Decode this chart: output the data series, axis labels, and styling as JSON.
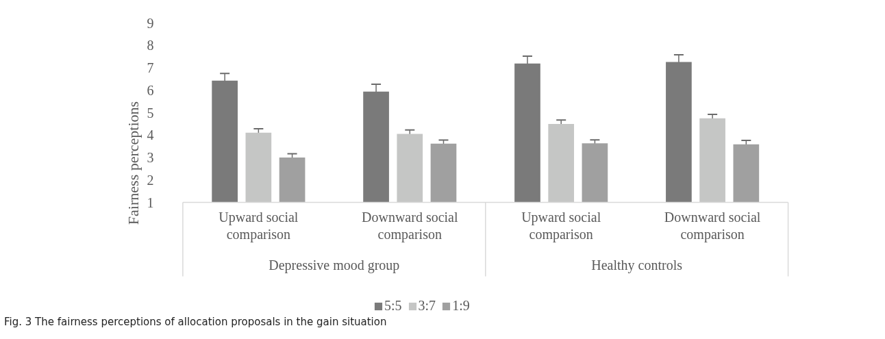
{
  "chart_data": {
    "type": "bar",
    "ylabel": "Fairness perceptions",
    "categories": [
      "Upward social comparison",
      "Downward social comparison",
      "Upward social comparison",
      "Downward social comparison"
    ],
    "series": [
      {
        "name": "5:5",
        "color": "#7a7a7a",
        "values": [
          6.43,
          5.94,
          7.19,
          7.26
        ],
        "errors": [
          0.32,
          0.33,
          0.33,
          0.32
        ]
      },
      {
        "name": "3:7",
        "color": "#c5c6c5",
        "values": [
          4.11,
          4.05,
          4.5,
          4.75
        ],
        "errors": [
          0.17,
          0.18,
          0.17,
          0.17
        ]
      },
      {
        "name": "1:9",
        "color": "#a0a0a0",
        "values": [
          3.0,
          3.62,
          3.63,
          3.59
        ],
        "errors": [
          0.17,
          0.16,
          0.16,
          0.17
        ]
      }
    ],
    "ylim": [
      1,
      9
    ],
    "yticks": [
      1,
      2,
      3,
      4,
      5,
      6,
      7,
      8,
      9
    ],
    "grid": false,
    "legend": "bottom",
    "annotations": [
      "Depressive mood group",
      "Healthy controls",
      "Fig. 3 The fairness perceptions of allocation proposals in the gain situation"
    ]
  }
}
